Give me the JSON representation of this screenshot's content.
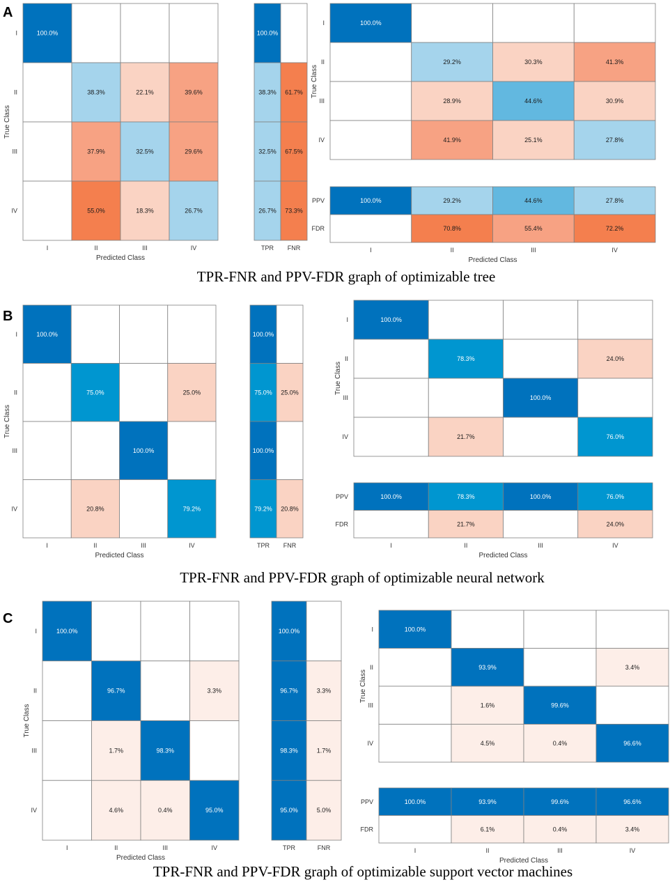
{
  "colors": {
    "blue_dark": "#0072BD",
    "blue_mid": "#0096D0",
    "blue_light": "#A5D4EC",
    "blue_pale": "#62B8E0",
    "orange_dark": "#F47F4E",
    "orange_mid": "#F7A283",
    "orange_light": "#FAD3C3",
    "orange_pale": "#FDEEE8",
    "grid": "#808080"
  },
  "chart_data": [
    {
      "id": "A",
      "type": "heatmap",
      "letter": "A",
      "caption": "TPR-FNR and PPV-FDR graph of optimizable tree",
      "class_labels": [
        "I",
        "II",
        "III",
        "IV"
      ],
      "xlabel": "Predicted Class",
      "ylabel": "True Class",
      "confusion": [
        [
          "100.0%",
          "",
          "",
          ""
        ],
        [
          "",
          "38.3%",
          "22.1%",
          "39.6%"
        ],
        [
          "",
          "37.9%",
          "32.5%",
          "29.6%"
        ],
        [
          "",
          "55.0%",
          "18.3%",
          "26.7%"
        ]
      ],
      "confusion_colors": [
        [
          "blue_dark",
          "w",
          "w",
          "w"
        ],
        [
          "w",
          "blue_light",
          "orange_light",
          "orange_mid"
        ],
        [
          "w",
          "orange_mid",
          "blue_light",
          "orange_mid"
        ],
        [
          "w",
          "orange_dark",
          "orange_light",
          "blue_light"
        ]
      ],
      "tpr_labels": [
        "TPR",
        "FNR"
      ],
      "tpr": [
        [
          "100.0%",
          ""
        ],
        [
          "38.3%",
          "61.7%"
        ],
        [
          "32.5%",
          "67.5%"
        ],
        [
          "26.7%",
          "73.3%"
        ]
      ],
      "tpr_colors": [
        [
          "blue_dark",
          "w"
        ],
        [
          "blue_light",
          "orange_dark"
        ],
        [
          "blue_light",
          "orange_dark"
        ],
        [
          "blue_light",
          "orange_dark"
        ]
      ],
      "col_norm": [
        [
          "100.0%",
          "",
          "",
          ""
        ],
        [
          "",
          "29.2%",
          "30.3%",
          "41.3%"
        ],
        [
          "",
          "28.9%",
          "44.6%",
          "30.9%"
        ],
        [
          "",
          "41.9%",
          "25.1%",
          "27.8%"
        ]
      ],
      "col_norm_colors": [
        [
          "blue_dark",
          "w",
          "w",
          "w"
        ],
        [
          "w",
          "blue_light",
          "orange_light",
          "orange_mid"
        ],
        [
          "w",
          "orange_light",
          "blue_pale",
          "orange_light"
        ],
        [
          "w",
          "orange_mid",
          "orange_light",
          "blue_light"
        ]
      ],
      "ppv_labels": [
        "PPV",
        "FDR"
      ],
      "ppv": [
        [
          "100.0%",
          "29.2%",
          "44.6%",
          "27.8%"
        ],
        [
          "",
          "70.8%",
          "55.4%",
          "72.2%"
        ]
      ],
      "ppv_colors": [
        [
          "blue_dark",
          "blue_light",
          "blue_pale",
          "blue_light"
        ],
        [
          "w",
          "orange_dark",
          "orange_mid",
          "orange_dark"
        ]
      ]
    },
    {
      "id": "B",
      "type": "heatmap",
      "letter": "B",
      "caption": "TPR-FNR and PPV-FDR graph of optimizable neural network",
      "class_labels": [
        "I",
        "II",
        "III",
        "IV"
      ],
      "xlabel": "Predicted Class",
      "ylabel": "True Class",
      "confusion": [
        [
          "100.0%",
          "",
          "",
          ""
        ],
        [
          "",
          "75.0%",
          "",
          "25.0%"
        ],
        [
          "",
          "",
          "100.0%",
          ""
        ],
        [
          "",
          "20.8%",
          "",
          "79.2%"
        ]
      ],
      "confusion_colors": [
        [
          "blue_dark",
          "w",
          "w",
          "w"
        ],
        [
          "w",
          "blue_mid",
          "w",
          "orange_light"
        ],
        [
          "w",
          "w",
          "blue_dark",
          "w"
        ],
        [
          "w",
          "orange_light",
          "w",
          "blue_mid"
        ]
      ],
      "tpr_labels": [
        "TPR",
        "FNR"
      ],
      "tpr": [
        [
          "100.0%",
          ""
        ],
        [
          "75.0%",
          "25.0%"
        ],
        [
          "100.0%",
          ""
        ],
        [
          "79.2%",
          "20.8%"
        ]
      ],
      "tpr_colors": [
        [
          "blue_dark",
          "w"
        ],
        [
          "blue_mid",
          "orange_light"
        ],
        [
          "blue_dark",
          "w"
        ],
        [
          "blue_mid",
          "orange_light"
        ]
      ],
      "col_norm": [
        [
          "100.0%",
          "",
          "",
          ""
        ],
        [
          "",
          "78.3%",
          "",
          "24.0%"
        ],
        [
          "",
          "",
          "100.0%",
          ""
        ],
        [
          "",
          "21.7%",
          "",
          "76.0%"
        ]
      ],
      "col_norm_colors": [
        [
          "blue_dark",
          "w",
          "w",
          "w"
        ],
        [
          "w",
          "blue_mid",
          "w",
          "orange_light"
        ],
        [
          "w",
          "w",
          "blue_dark",
          "w"
        ],
        [
          "w",
          "orange_light",
          "w",
          "blue_mid"
        ]
      ],
      "ppv_labels": [
        "PPV",
        "FDR"
      ],
      "ppv": [
        [
          "100.0%",
          "78.3%",
          "100.0%",
          "76.0%"
        ],
        [
          "",
          "21.7%",
          "",
          "24.0%"
        ]
      ],
      "ppv_colors": [
        [
          "blue_dark",
          "blue_mid",
          "blue_dark",
          "blue_mid"
        ],
        [
          "w",
          "orange_light",
          "w",
          "orange_light"
        ]
      ]
    },
    {
      "id": "C",
      "type": "heatmap",
      "letter": "C",
      "caption": "TPR-FNR and PPV-FDR graph of optimizable support vector machines",
      "class_labels": [
        "I",
        "II",
        "III",
        "IV"
      ],
      "xlabel": "Predicted Class",
      "ylabel": "True Class",
      "confusion": [
        [
          "100.0%",
          "",
          "",
          ""
        ],
        [
          "",
          "96.7%",
          "",
          "3.3%"
        ],
        [
          "",
          "1.7%",
          "98.3%",
          ""
        ],
        [
          "",
          "4.6%",
          "0.4%",
          "95.0%"
        ]
      ],
      "confusion_colors": [
        [
          "blue_dark",
          "w",
          "w",
          "w"
        ],
        [
          "w",
          "blue_dark",
          "w",
          "orange_pale"
        ],
        [
          "w",
          "orange_pale",
          "blue_dark",
          "w"
        ],
        [
          "w",
          "orange_pale",
          "orange_pale",
          "blue_dark"
        ]
      ],
      "tpr_labels": [
        "TPR",
        "FNR"
      ],
      "tpr": [
        [
          "100.0%",
          ""
        ],
        [
          "96.7%",
          "3.3%"
        ],
        [
          "98.3%",
          "1.7%"
        ],
        [
          "95.0%",
          "5.0%"
        ]
      ],
      "tpr_colors": [
        [
          "blue_dark",
          "w"
        ],
        [
          "blue_dark",
          "orange_pale"
        ],
        [
          "blue_dark",
          "orange_pale"
        ],
        [
          "blue_dark",
          "orange_pale"
        ]
      ],
      "col_norm": [
        [
          "100.0%",
          "",
          "",
          ""
        ],
        [
          "",
          "93.9%",
          "",
          "3.4%"
        ],
        [
          "",
          "1.6%",
          "99.6%",
          ""
        ],
        [
          "",
          "4.5%",
          "0.4%",
          "96.6%"
        ]
      ],
      "col_norm_colors": [
        [
          "blue_dark",
          "w",
          "w",
          "w"
        ],
        [
          "w",
          "blue_dark",
          "w",
          "orange_pale"
        ],
        [
          "w",
          "orange_pale",
          "blue_dark",
          "w"
        ],
        [
          "w",
          "orange_pale",
          "orange_pale",
          "blue_dark"
        ]
      ],
      "ppv_labels": [
        "PPV",
        "FDR"
      ],
      "ppv": [
        [
          "100.0%",
          "93.9%",
          "99.6%",
          "96.6%"
        ],
        [
          "",
          "6.1%",
          "0.4%",
          "3.4%"
        ]
      ],
      "ppv_colors": [
        [
          "blue_dark",
          "blue_dark",
          "blue_dark",
          "blue_dark"
        ],
        [
          "w",
          "orange_pale",
          "orange_pale",
          "orange_pale"
        ]
      ]
    }
  ]
}
